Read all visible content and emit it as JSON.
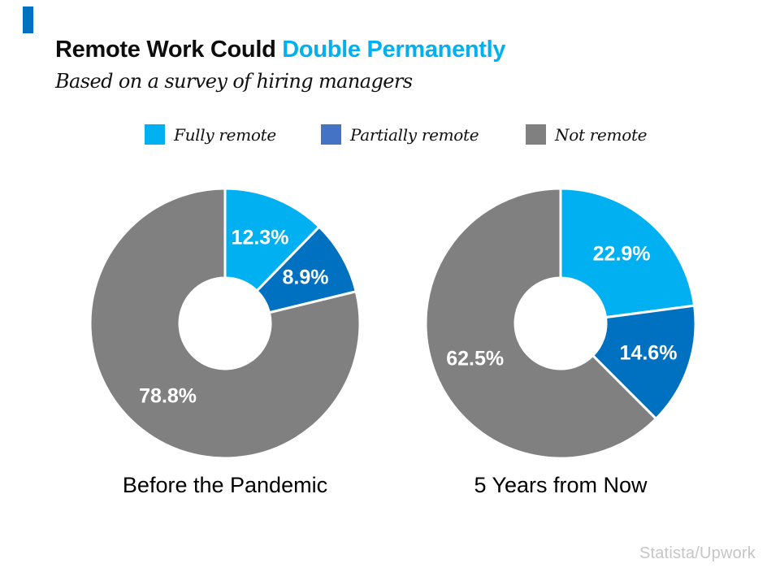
{
  "accent": {
    "color": "#0070C0"
  },
  "header": {
    "title_black": "Remote Work Could ",
    "title_blue": "Double Permanently",
    "title_blue_color": "#00B0F0",
    "subtitle": "Based on a survey of hiring managers"
  },
  "legend": {
    "items": [
      {
        "label": "Fully remote",
        "color": "#00B0F0"
      },
      {
        "label": "Partially remote",
        "color": "#4472C4"
      },
      {
        "label": "Not remote",
        "color": "#808080"
      }
    ]
  },
  "source": "Statista/Upwork",
  "chart_data": [
    {
      "type": "pie",
      "subtype": "donut",
      "title": "Before the Pandemic",
      "categories": [
        "Fully remote",
        "Partially remote",
        "Not remote"
      ],
      "values": [
        12.3,
        8.9,
        78.8
      ],
      "labels": [
        "12.3%",
        "8.9%",
        "78.8%"
      ],
      "colors": [
        "#00B0F0",
        "#0070C0",
        "#808080"
      ],
      "label_color": "#ffffff",
      "start_angle_deg": 0,
      "direction": "clockwise",
      "inner_radius_ratio": 0.34,
      "legend_position": "top"
    },
    {
      "type": "pie",
      "subtype": "donut",
      "title": "5 Years from Now",
      "categories": [
        "Fully remote",
        "Partially remote",
        "Not remote"
      ],
      "values": [
        22.9,
        14.6,
        62.5
      ],
      "labels": [
        "22.9%",
        "14.6%",
        "62.5%"
      ],
      "colors": [
        "#00B0F0",
        "#0070C0",
        "#808080"
      ],
      "label_color": "#ffffff",
      "start_angle_deg": 0,
      "direction": "clockwise",
      "inner_radius_ratio": 0.34,
      "legend_position": "top"
    }
  ]
}
